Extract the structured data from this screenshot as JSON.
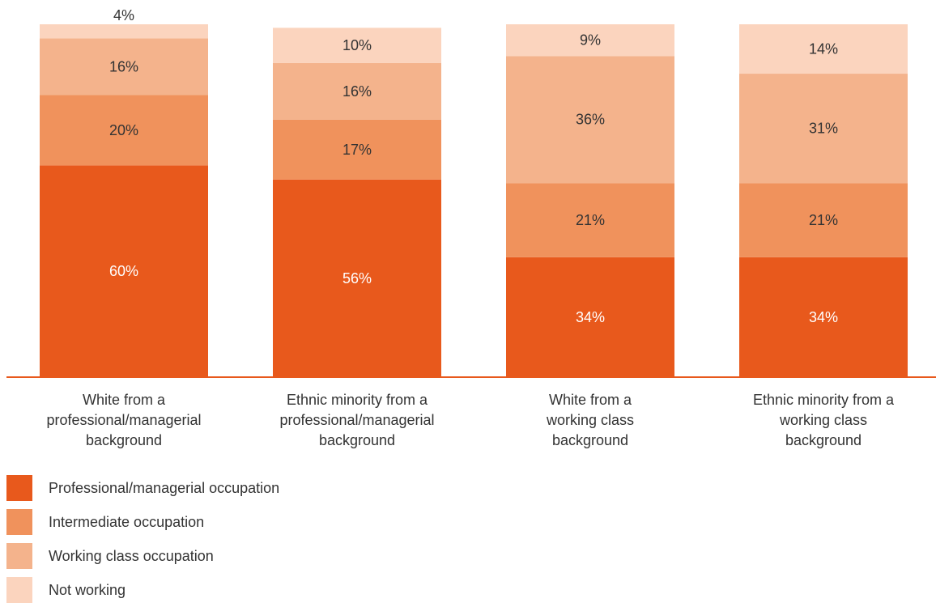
{
  "chart_data": {
    "type": "bar",
    "stacked": true,
    "categories": [
      [
        "White from a",
        "professional/managerial",
        "background"
      ],
      [
        "Ethnic minority from a",
        "professional/managerial",
        "background"
      ],
      [
        "White from a",
        "working class",
        "background"
      ],
      [
        "Ethnic minority from a",
        "working class",
        "background"
      ]
    ],
    "series": [
      {
        "name": "Professional/managerial occupation",
        "values": [
          60,
          56,
          34,
          34
        ],
        "color": "#e8591c",
        "label_color": "#ffffff"
      },
      {
        "name": "Intermediate occupation",
        "values": [
          20,
          17,
          21,
          21
        ],
        "color": "#f0925c",
        "label_color": "#333333"
      },
      {
        "name": "Working class occupation",
        "values": [
          16,
          16,
          36,
          31
        ],
        "color": "#f4b38c",
        "label_color": "#333333"
      },
      {
        "name": "Not working",
        "values": [
          4,
          10,
          9,
          14
        ],
        "color": "#fbd4be",
        "label_color": "#333333"
      }
    ],
    "value_suffix": "%",
    "ylim": [
      0,
      100
    ],
    "grid": false,
    "baseline_color": "#e8591c",
    "legend_position": "bottom-left"
  }
}
